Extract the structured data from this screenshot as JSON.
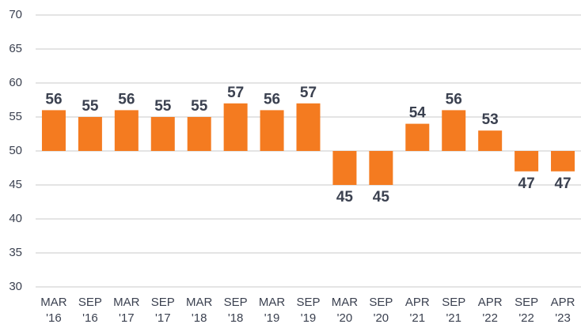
{
  "chart_data": {
    "type": "bar",
    "categories": [
      [
        "MAR",
        "'16"
      ],
      [
        "SEP",
        "'16"
      ],
      [
        "MAR",
        "'17"
      ],
      [
        "SEP",
        "'17"
      ],
      [
        "MAR",
        "'18"
      ],
      [
        "SEP",
        "'18"
      ],
      [
        "MAR",
        "'19"
      ],
      [
        "SEP",
        "'19"
      ],
      [
        "MAR",
        "'20"
      ],
      [
        "SEP",
        "'20"
      ],
      [
        "APR",
        "'21"
      ],
      [
        "SEP",
        "'21"
      ],
      [
        "APR",
        "'22"
      ],
      [
        "SEP",
        "'22"
      ],
      [
        "APR",
        "'23"
      ]
    ],
    "values": [
      56,
      55,
      56,
      55,
      55,
      57,
      56,
      57,
      45,
      45,
      54,
      56,
      53,
      47,
      47
    ],
    "color": "#f47b20",
    "baseline": 50,
    "ylim": [
      30,
      70
    ],
    "yticks": [
      30,
      35,
      40,
      45,
      50,
      55,
      60,
      65,
      70
    ],
    "grid": true
  }
}
